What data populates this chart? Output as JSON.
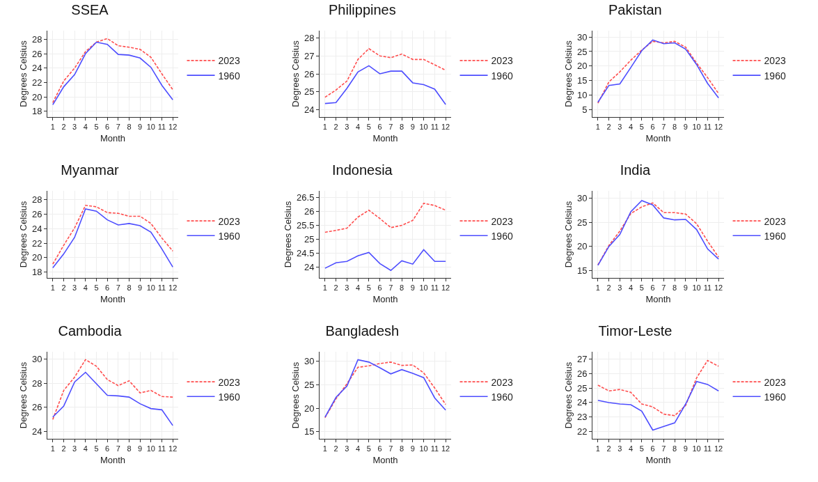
{
  "chart_data": [
    {
      "type": "line",
      "title": "SSEA",
      "xlabel": "Month",
      "ylabel": "Degrees Celsius",
      "x": [
        1,
        2,
        3,
        4,
        5,
        6,
        7,
        8,
        9,
        10,
        11,
        12
      ],
      "xlim": [
        0.5,
        12.5
      ],
      "xticks": [
        1,
        2,
        3,
        4,
        5,
        6,
        7,
        8,
        9,
        10,
        11,
        12
      ],
      "ylim": [
        17.2,
        29.2
      ],
      "yticks": [
        18,
        20,
        22,
        24,
        26,
        28
      ],
      "grid": true,
      "legend": "right",
      "series": [
        {
          "name": "2023",
          "color": "#ff4d4d",
          "line_style": "dashed",
          "values": [
            19.2,
            22.2,
            24.0,
            26.3,
            27.6,
            28.1,
            27.1,
            26.9,
            26.6,
            25.5,
            23.2,
            21.0
          ]
        },
        {
          "name": "1960",
          "color": "#4d4dff",
          "line_style": "solid",
          "values": [
            18.9,
            21.4,
            23.1,
            26.0,
            27.6,
            27.3,
            25.9,
            25.8,
            25.4,
            24.1,
            21.6,
            19.6
          ]
        }
      ]
    },
    {
      "type": "line",
      "title": "Philippines",
      "xlabel": "Month",
      "ylabel": "Degrees Celsius",
      "x": [
        1,
        2,
        3,
        4,
        5,
        6,
        7,
        8,
        9,
        10,
        11,
        12
      ],
      "xlim": [
        0.5,
        12.5
      ],
      "xticks": [
        1,
        2,
        3,
        4,
        5,
        6,
        7,
        8,
        9,
        10,
        11,
        12
      ],
      "ylim": [
        23.6,
        28.4
      ],
      "yticks": [
        24,
        25,
        26,
        27,
        28
      ],
      "grid": true,
      "legend": "right",
      "series": [
        {
          "name": "2023",
          "color": "#ff4d4d",
          "line_style": "dashed",
          "values": [
            24.7,
            25.1,
            25.6,
            26.8,
            27.4,
            27.0,
            26.9,
            27.1,
            26.8,
            26.8,
            26.5,
            26.2
          ]
        },
        {
          "name": "1960",
          "color": "#4d4dff",
          "line_style": "solid",
          "values": [
            24.35,
            24.4,
            25.2,
            26.1,
            26.45,
            26.0,
            26.15,
            26.15,
            25.5,
            25.4,
            25.15,
            24.3
          ]
        }
      ]
    },
    {
      "type": "line",
      "title": "Pakistan",
      "xlabel": "Month",
      "ylabel": "Degrees Celsius",
      "x": [
        1,
        2,
        3,
        4,
        5,
        6,
        7,
        8,
        9,
        10,
        11,
        12
      ],
      "xlim": [
        0.5,
        12.5
      ],
      "xticks": [
        1,
        2,
        3,
        4,
        5,
        6,
        7,
        8,
        9,
        10,
        11,
        12
      ],
      "ylim": [
        2.4,
        32.2
      ],
      "yticks": [
        5,
        10,
        15,
        20,
        25,
        30
      ],
      "grid": true,
      "legend": "right",
      "series": [
        {
          "name": "2023",
          "color": "#ff4d4d",
          "line_style": "dashed",
          "values": [
            7.2,
            14.5,
            18,
            22,
            25.5,
            28.5,
            28,
            28.5,
            26.5,
            21,
            16,
            10.5
          ]
        },
        {
          "name": "1960",
          "color": "#4d4dff",
          "line_style": "solid",
          "values": [
            7.5,
            13.3,
            13.8,
            19.5,
            25.3,
            29,
            27.7,
            28,
            25.8,
            20.5,
            14,
            9
          ]
        }
      ]
    },
    {
      "type": "line",
      "title": "Myanmar",
      "xlabel": "Month",
      "ylabel": "Degrees Celsius",
      "x": [
        1,
        2,
        3,
        4,
        5,
        6,
        7,
        8,
        9,
        10,
        11,
        12
      ],
      "xlim": [
        0.5,
        12.5
      ],
      "xticks": [
        1,
        2,
        3,
        4,
        5,
        6,
        7,
        8,
        9,
        10,
        11,
        12
      ],
      "ylim": [
        17.2,
        29.2
      ],
      "yticks": [
        18,
        20,
        22,
        24,
        26,
        28
      ],
      "grid": true,
      "legend": "right",
      "series": [
        {
          "name": "2023",
          "color": "#ff4d4d",
          "line_style": "dashed",
          "values": [
            19.1,
            21.7,
            24.1,
            27.2,
            27.0,
            26.2,
            26.1,
            25.7,
            25.7,
            24.7,
            22.7,
            20.9
          ]
        },
        {
          "name": "1960",
          "color": "#4d4dff",
          "line_style": "solid",
          "values": [
            18.6,
            20.5,
            22.8,
            26.7,
            26.4,
            25.2,
            24.5,
            24.7,
            24.4,
            23.5,
            21.2,
            18.7
          ]
        }
      ]
    },
    {
      "type": "line",
      "title": "Indonesia",
      "xlabel": "Month",
      "ylabel": "Degrees Celsius",
      "x": [
        1,
        2,
        3,
        4,
        5,
        6,
        7,
        8,
        9,
        10,
        11,
        12
      ],
      "xlim": [
        0.5,
        12.5
      ],
      "xticks": [
        1,
        2,
        3,
        4,
        5,
        6,
        7,
        8,
        9,
        10,
        11,
        12
      ],
      "ylim": [
        23.6,
        26.75
      ],
      "yticks": [
        24,
        24.5,
        25,
        25.5,
        26,
        26.5
      ],
      "grid": true,
      "legend": "right",
      "series": [
        {
          "name": "2023",
          "color": "#ff4d4d",
          "line_style": "dashed",
          "values": [
            25.25,
            25.32,
            25.4,
            25.8,
            26.05,
            25.75,
            25.42,
            25.5,
            25.68,
            26.3,
            26.22,
            26.05
          ]
        },
        {
          "name": "1960",
          "color": "#4d4dff",
          "line_style": "solid",
          "values": [
            23.95,
            24.15,
            24.2,
            24.4,
            24.52,
            24.12,
            23.87,
            24.22,
            24.1,
            24.62,
            24.2,
            24.2
          ]
        }
      ]
    },
    {
      "type": "line",
      "title": "India",
      "xlabel": "Month",
      "ylabel": "Degrees Celsius",
      "x": [
        1,
        2,
        3,
        4,
        5,
        6,
        7,
        8,
        9,
        10,
        11,
        12
      ],
      "xlim": [
        0.5,
        12.5
      ],
      "xticks": [
        1,
        2,
        3,
        4,
        5,
        6,
        7,
        8,
        9,
        10,
        11,
        12
      ],
      "ylim": [
        13.5,
        31.5
      ],
      "yticks": [
        15,
        20,
        25,
        30
      ],
      "grid": true,
      "legend": "right",
      "series": [
        {
          "name": "2023",
          "color": "#ff4d4d",
          "line_style": "dashed",
          "values": [
            16.2,
            20.2,
            23.2,
            26.8,
            28.2,
            29.0,
            27.0,
            27.0,
            26.7,
            24.7,
            21.1,
            17.8
          ]
        },
        {
          "name": "1960",
          "color": "#4d4dff",
          "line_style": "solid",
          "values": [
            16.1,
            20.0,
            22.5,
            27.2,
            29.5,
            28.6,
            25.9,
            25.5,
            25.6,
            23.5,
            19.5,
            17.4
          ]
        }
      ]
    },
    {
      "type": "line",
      "title": "Cambodia",
      "xlabel": "Month",
      "ylabel": "Degrees Celsius",
      "x": [
        1,
        2,
        3,
        4,
        5,
        6,
        7,
        8,
        9,
        10,
        11,
        12
      ],
      "xlim": [
        0.5,
        12.5
      ],
      "xticks": [
        1,
        2,
        3,
        4,
        5,
        6,
        7,
        8,
        9,
        10,
        11,
        12
      ],
      "ylim": [
        23.4,
        30.6
      ],
      "yticks": [
        24,
        26,
        28,
        30
      ],
      "grid": true,
      "legend": "right",
      "series": [
        {
          "name": "2023",
          "color": "#ff4d4d",
          "line_style": "dashed",
          "values": [
            25.0,
            27.4,
            28.5,
            29.95,
            29.4,
            28.3,
            27.8,
            28.2,
            27.2,
            27.4,
            26.9,
            26.85
          ]
        },
        {
          "name": "1960",
          "color": "#4d4dff",
          "line_style": "solid",
          "values": [
            25.2,
            26.1,
            28.1,
            28.9,
            27.95,
            27.0,
            26.95,
            26.85,
            26.3,
            25.9,
            25.8,
            24.5
          ]
        }
      ]
    },
    {
      "type": "line",
      "title": "Bangladesh",
      "xlabel": "Month",
      "ylabel": "Degrees Celsius",
      "x": [
        1,
        2,
        3,
        4,
        5,
        6,
        7,
        8,
        9,
        10,
        11,
        12
      ],
      "xlim": [
        0.5,
        12.5
      ],
      "xticks": [
        1,
        2,
        3,
        4,
        5,
        6,
        7,
        8,
        9,
        10,
        11,
        12
      ],
      "ylim": [
        13.5,
        32
      ],
      "yticks": [
        15,
        20,
        25,
        30
      ],
      "grid": true,
      "legend": "right",
      "series": [
        {
          "name": "2023",
          "color": "#ff4d4d",
          "line_style": "dashed",
          "values": [
            18.0,
            22.0,
            25.2,
            28.7,
            29.0,
            29.5,
            29.8,
            29.1,
            29.2,
            27.5,
            24.3,
            20.8
          ]
        },
        {
          "name": "1960",
          "color": "#4d4dff",
          "line_style": "solid",
          "values": [
            18.1,
            22.3,
            24.7,
            30.3,
            29.8,
            28.6,
            27.3,
            28.2,
            27.4,
            26.5,
            22.2,
            19.6
          ]
        }
      ]
    },
    {
      "type": "line",
      "title": "Timor-Leste",
      "xlabel": "Month",
      "ylabel": "Degrees Celsius",
      "x": [
        1,
        2,
        3,
        4,
        5,
        6,
        7,
        8,
        9,
        10,
        11,
        12
      ],
      "xlim": [
        0.5,
        12.5
      ],
      "xticks": [
        1,
        2,
        3,
        4,
        5,
        6,
        7,
        8,
        9,
        10,
        11,
        12
      ],
      "ylim": [
        21.5,
        27.5
      ],
      "yticks": [
        22,
        23,
        24,
        25,
        26,
        27
      ],
      "grid": true,
      "legend": "right",
      "series": [
        {
          "name": "2023",
          "color": "#ff4d4d",
          "line_style": "dashed",
          "values": [
            25.2,
            24.8,
            24.9,
            24.7,
            23.9,
            23.7,
            23.2,
            23.1,
            23.8,
            25.7,
            26.9,
            26.5
          ]
        },
        {
          "name": "1960",
          "color": "#4d4dff",
          "line_style": "solid",
          "values": [
            24.15,
            24.0,
            23.9,
            23.85,
            23.4,
            22.1,
            22.35,
            22.6,
            23.9,
            25.45,
            25.25,
            24.8
          ]
        }
      ]
    }
  ]
}
